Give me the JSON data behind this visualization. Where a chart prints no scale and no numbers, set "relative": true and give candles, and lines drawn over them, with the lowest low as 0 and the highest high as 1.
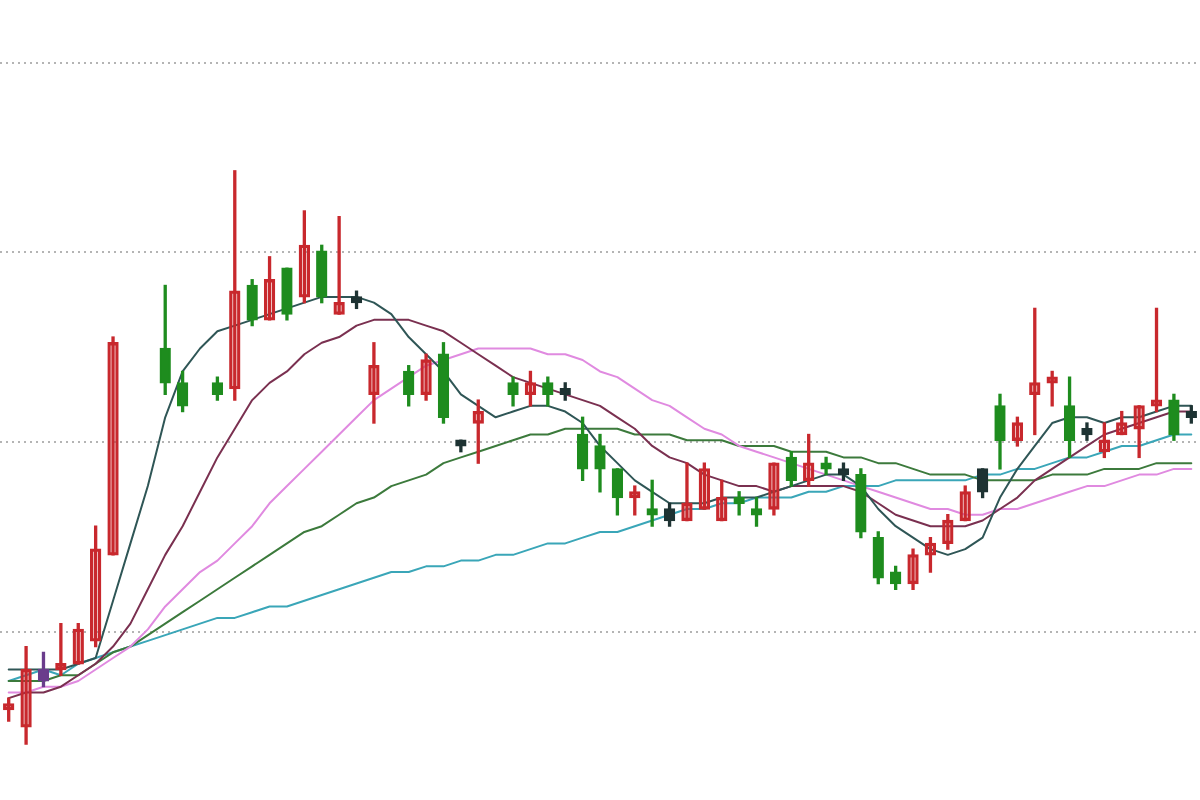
{
  "chart_data": {
    "type": "candlestick",
    "relative": true,
    "grid": "y",
    "marker": "none",
    "categories": [
      null,
      null,
      null,
      null,
      null,
      null,
      null,
      null,
      null,
      null,
      null,
      null,
      null,
      null,
      null,
      null,
      null,
      null,
      null,
      null,
      null,
      null,
      null,
      null,
      null,
      null,
      null,
      null,
      null,
      null,
      null,
      null,
      null,
      null,
      null,
      null,
      null,
      null,
      null,
      null,
      null,
      null,
      null,
      null,
      null,
      null,
      null,
      null,
      null,
      null,
      null,
      null,
      null,
      null,
      null,
      null,
      null,
      null,
      null,
      null,
      null,
      null,
      null,
      null,
      null,
      null,
      null,
      null,
      null
    ],
    "ohlc": [
      [
        0.06,
        0.08,
        0.04,
        0.07
      ],
      [
        0.03,
        0.17,
        0,
        0.13
      ],
      [
        0.13,
        0.16,
        0.1,
        0.11
      ],
      [
        0.13,
        0.21,
        0.12,
        0.14
      ],
      [
        0.14,
        0.21,
        0.14,
        0.2
      ],
      [
        0.18,
        0.38,
        0.17,
        0.34
      ],
      [
        0.33,
        0.71,
        0.33,
        0.7
      ],
      null,
      null,
      [
        0.69,
        0.8,
        0.61,
        0.63
      ],
      [
        0.63,
        0.65,
        0.58,
        0.59
      ],
      null,
      [
        0.63,
        0.64,
        0.6,
        0.61
      ],
      [
        0.62,
        1,
        0.6,
        0.79
      ],
      [
        0.8,
        0.81,
        0.73,
        0.74
      ],
      [
        0.74,
        0.85,
        0.74,
        0.81
      ],
      [
        0.83,
        0.83,
        0.74,
        0.75
      ],
      [
        0.78,
        0.93,
        0.77,
        0.87
      ],
      [
        0.86,
        0.87,
        0.77,
        0.78
      ],
      [
        0.75,
        0.92,
        0.75,
        0.77
      ],
      [
        0.78,
        0.79,
        0.76,
        0.77
      ],
      [
        0.61,
        0.7,
        0.56,
        0.66
      ],
      null,
      [
        0.65,
        0.66,
        0.59,
        0.61
      ],
      [
        0.61,
        0.68,
        0.6,
        0.67
      ],
      [
        0.68,
        0.7,
        0.56,
        0.57
      ],
      [
        0.53,
        0.53,
        0.51,
        0.52
      ],
      [
        0.56,
        0.6,
        0.49,
        0.58
      ],
      null,
      [
        0.63,
        0.64,
        0.59,
        0.61
      ],
      [
        0.61,
        0.65,
        0.59,
        0.63
      ],
      [
        0.63,
        0.64,
        0.59,
        0.61
      ],
      [
        0.62,
        0.63,
        0.6,
        0.61
      ],
      [
        0.54,
        0.57,
        0.46,
        0.48
      ],
      [
        0.52,
        0.54,
        0.44,
        0.48
      ],
      [
        0.48,
        0.48,
        0.4,
        0.43
      ],
      [
        0.43,
        0.45,
        0.4,
        0.44
      ],
      [
        0.41,
        0.46,
        0.38,
        0.4
      ],
      [
        0.41,
        0.42,
        0.38,
        0.39
      ],
      [
        0.39,
        0.49,
        0.39,
        0.42
      ],
      [
        0.41,
        0.49,
        0.41,
        0.48
      ],
      [
        0.39,
        0.46,
        0.39,
        0.43
      ],
      [
        0.43,
        0.44,
        0.4,
        0.42
      ],
      [
        0.41,
        0.43,
        0.38,
        0.4
      ],
      [
        0.41,
        0.49,
        0.4,
        0.49
      ],
      [
        0.5,
        0.51,
        0.45,
        0.46
      ],
      [
        0.46,
        0.54,
        0.45,
        0.49
      ],
      [
        0.49,
        0.5,
        0.47,
        0.48
      ],
      [
        0.48,
        0.49,
        0.46,
        0.47
      ],
      [
        0.47,
        0.48,
        0.36,
        0.37
      ],
      [
        0.36,
        0.37,
        0.28,
        0.29
      ],
      [
        0.3,
        0.31,
        0.27,
        0.28
      ],
      [
        0.28,
        0.34,
        0.27,
        0.33
      ],
      [
        0.33,
        0.36,
        0.3,
        0.35
      ],
      [
        0.35,
        0.4,
        0.34,
        0.39
      ],
      [
        0.39,
        0.45,
        0.39,
        0.44
      ],
      [
        0.48,
        0.48,
        0.43,
        0.44
      ],
      [
        0.59,
        0.61,
        0.48,
        0.53
      ],
      [
        0.53,
        0.57,
        0.52,
        0.56
      ],
      [
        0.61,
        0.76,
        0.54,
        0.63
      ],
      [
        0.63,
        0.65,
        0.59,
        0.64
      ],
      [
        0.59,
        0.64,
        0.5,
        0.53
      ],
      [
        0.55,
        0.56,
        0.53,
        0.54
      ],
      [
        0.51,
        0.56,
        0.5,
        0.53
      ],
      [
        0.54,
        0.58,
        0.54,
        0.56
      ],
      [
        0.55,
        0.59,
        0.5,
        0.59
      ],
      [
        0.59,
        0.76,
        0.58,
        0.6
      ],
      [
        0.6,
        0.61,
        0.53,
        0.54
      ],
      [
        0.58,
        0.59,
        0.56,
        0.57
      ]
    ],
    "colors": [
      "#c8282d",
      "#c8282d",
      "#6a3c8c",
      "#c8282d",
      "#c8282d",
      "#c8282d",
      "#c8282d",
      null,
      null,
      "#1e8c1e",
      "#1e8c1e",
      null,
      "#1e8c1e",
      "#c8282d",
      "#1e8c1e",
      "#c8282d",
      "#1e8c1e",
      "#c8282d",
      "#1e8c1e",
      "#c8282d",
      "#1e3333",
      "#c8282d",
      null,
      "#1e8c1e",
      "#c8282d",
      "#1e8c1e",
      "#1e3333",
      "#c8282d",
      null,
      "#1e8c1e",
      "#c8282d",
      "#1e8c1e",
      "#1e3333",
      "#1e8c1e",
      "#1e8c1e",
      "#1e8c1e",
      "#c8282d",
      "#1e8c1e",
      "#1e3333",
      "#c8282d",
      "#c8282d",
      "#c8282d",
      "#1e8c1e",
      "#1e8c1e",
      "#c8282d",
      "#1e8c1e",
      "#c8282d",
      "#1e8c1e",
      "#1e3333",
      "#1e8c1e",
      "#1e8c1e",
      "#1e8c1e",
      "#c8282d",
      "#c8282d",
      "#c8282d",
      "#c8282d",
      "#1e3333",
      "#1e8c1e",
      "#c8282d",
      "#c8282d",
      "#c8282d",
      "#1e8c1e",
      "#1e3333",
      "#c8282d",
      "#c8282d",
      "#c8282d",
      "#c8282d",
      "#1e8c1e",
      "#1e3333"
    ],
    "series": [
      {
        "type": "line",
        "color": "#2f5656",
        "values": [
          0.13,
          0.13,
          0.13,
          0.13,
          0.14,
          0.15,
          0.25,
          0.35,
          0.45,
          0.57,
          0.65,
          0.69,
          0.72,
          0.73,
          0.74,
          0.75,
          0.76,
          0.77,
          0.78,
          0.78,
          0.78,
          0.77,
          0.75,
          0.71,
          0.68,
          0.65,
          0.61,
          0.59,
          0.57,
          0.58,
          0.59,
          0.59,
          0.58,
          0.56,
          0.52,
          0.49,
          0.46,
          0.44,
          0.42,
          0.42,
          0.42,
          0.43,
          0.43,
          0.43,
          0.44,
          0.45,
          0.46,
          0.47,
          0.47,
          0.45,
          0.41,
          0.38,
          0.36,
          0.34,
          0.33,
          0.34,
          0.36,
          0.43,
          0.48,
          0.52,
          0.56,
          0.57,
          0.57,
          0.56,
          0.57,
          0.57,
          0.58,
          0.59,
          0.59
        ]
      },
      {
        "type": "line",
        "color": "#7a3050",
        "values": [
          0.08,
          0.09,
          0.09,
          0.1,
          0.12,
          0.14,
          0.17,
          0.21,
          0.27,
          0.33,
          0.38,
          0.44,
          0.5,
          0.55,
          0.6,
          0.63,
          0.65,
          0.68,
          0.7,
          0.71,
          0.73,
          0.74,
          0.74,
          0.74,
          0.73,
          0.72,
          0.7,
          0.68,
          0.66,
          0.64,
          0.63,
          0.62,
          0.61,
          0.6,
          0.59,
          0.57,
          0.55,
          0.52,
          0.5,
          0.49,
          0.47,
          0.46,
          0.45,
          0.45,
          0.44,
          0.45,
          0.45,
          0.45,
          0.45,
          0.44,
          0.42,
          0.4,
          0.39,
          0.38,
          0.38,
          0.38,
          0.39,
          0.41,
          0.43,
          0.46,
          0.48,
          0.5,
          0.52,
          0.54,
          0.55,
          0.56,
          0.57,
          0.58,
          0.58
        ]
      },
      {
        "type": "line",
        "color": "#e08ae0",
        "values": [
          0.09,
          0.09,
          0.1,
          0.1,
          0.11,
          0.13,
          0.15,
          0.17,
          0.2,
          0.24,
          0.27,
          0.3,
          0.32,
          0.35,
          0.38,
          0.42,
          0.45,
          0.48,
          0.51,
          0.54,
          0.57,
          0.6,
          0.62,
          0.64,
          0.66,
          0.67,
          0.68,
          0.69,
          0.69,
          0.69,
          0.69,
          0.68,
          0.68,
          0.67,
          0.65,
          0.64,
          0.62,
          0.6,
          0.59,
          0.57,
          0.55,
          0.54,
          0.52,
          0.51,
          0.5,
          0.49,
          0.48,
          0.47,
          0.46,
          0.45,
          0.44,
          0.43,
          0.42,
          0.41,
          0.41,
          0.4,
          0.4,
          0.41,
          0.41,
          0.42,
          0.43,
          0.44,
          0.45,
          0.45,
          0.46,
          0.47,
          0.47,
          0.48,
          0.48
        ]
      },
      {
        "type": "line",
        "color": "#3c7a3c",
        "values": [
          0.11,
          0.11,
          0.11,
          0.12,
          0.12,
          0.14,
          0.16,
          0.17,
          0.19,
          0.21,
          0.23,
          0.25,
          0.27,
          0.29,
          0.31,
          0.33,
          0.35,
          0.37,
          0.38,
          0.4,
          0.42,
          0.43,
          0.45,
          0.46,
          0.47,
          0.49,
          0.5,
          0.51,
          0.52,
          0.53,
          0.54,
          0.54,
          0.55,
          0.55,
          0.55,
          0.55,
          0.54,
          0.54,
          0.54,
          0.53,
          0.53,
          0.53,
          0.52,
          0.52,
          0.52,
          0.51,
          0.51,
          0.51,
          0.5,
          0.5,
          0.49,
          0.49,
          0.48,
          0.47,
          0.47,
          0.47,
          0.46,
          0.46,
          0.46,
          0.46,
          0.47,
          0.47,
          0.47,
          0.48,
          0.48,
          0.48,
          0.49,
          0.49,
          0.49
        ]
      },
      {
        "type": "line",
        "color": "#3aa6b8",
        "values": [
          0.11,
          0.12,
          0.13,
          0.12,
          0.14,
          0.15,
          0.16,
          0.17,
          0.18,
          0.19,
          0.2,
          0.21,
          0.22,
          0.22,
          0.23,
          0.24,
          0.24,
          0.25,
          0.26,
          0.27,
          0.28,
          0.29,
          0.3,
          0.3,
          0.31,
          0.31,
          0.32,
          0.32,
          0.33,
          0.33,
          0.34,
          0.35,
          0.35,
          0.36,
          0.37,
          0.37,
          0.38,
          0.39,
          0.4,
          0.41,
          0.41,
          0.42,
          0.42,
          0.43,
          0.43,
          0.43,
          0.44,
          0.44,
          0.45,
          0.45,
          0.45,
          0.46,
          0.46,
          0.46,
          0.46,
          0.46,
          0.47,
          0.47,
          0.48,
          0.48,
          0.49,
          0.5,
          0.5,
          0.51,
          0.52,
          0.52,
          0.53,
          0.54,
          0.54
        ]
      }
    ]
  }
}
